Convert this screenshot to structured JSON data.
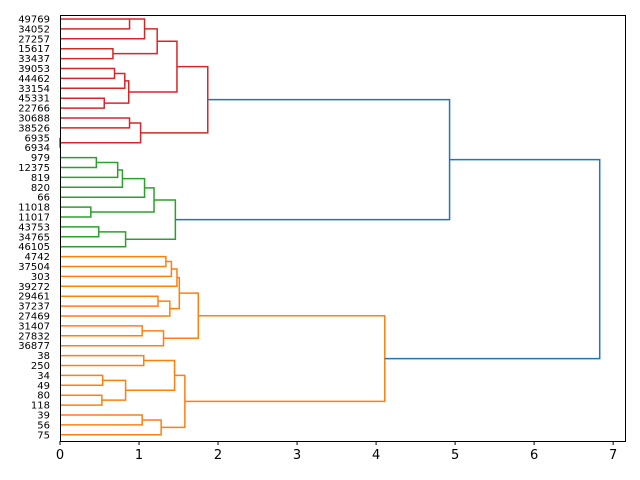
{
  "chart_data": {
    "type": "dendrogram",
    "orientation": "right",
    "title": "",
    "xlabel": "",
    "ylabel": "",
    "xlim": [
      0,
      7.15
    ],
    "xticks": [
      0,
      1,
      2,
      3,
      4,
      5,
      6,
      7
    ],
    "grid": false,
    "leaves": [
      "49769",
      "34052",
      "27257",
      "15617",
      "33437",
      "39053",
      "44462",
      "33154",
      "45331",
      "22766",
      "30688",
      "38526",
      "6935",
      "6934",
      "979",
      "12375",
      "819",
      "820",
      "66",
      "11018",
      "11017",
      "43753",
      "34765",
      "46105",
      "4742",
      "37504",
      "303",
      "39272",
      "29461",
      "37237",
      "27469",
      "31407",
      "27832",
      "36877",
      "38",
      "250",
      "34",
      "49",
      "80",
      "118",
      "39",
      "56",
      "75"
    ],
    "colors": {
      "red": "#d62728",
      "green": "#2ca02c",
      "orange": "#ff7f0e",
      "blue": "#1f77b4"
    },
    "links": [
      {
        "a": [
          0,
          0,
          0
        ],
        "b": [
          1,
          0,
          0
        ],
        "h": 0.88,
        "color": "red"
      },
      {
        "a": [
          2,
          0,
          0
        ],
        "b": [
          0,
          0.88,
          1
        ],
        "h": 1.07,
        "color": "red"
      },
      {
        "a": [
          3,
          0,
          0
        ],
        "b": [
          4,
          0,
          0
        ],
        "h": 0.67,
        "color": "red"
      },
      {
        "a": [
          1,
          1.07,
          2
        ],
        "b": [
          3.5,
          0.67,
          3
        ],
        "h": 1.23,
        "color": "red"
      },
      {
        "a": [
          5,
          0,
          0
        ],
        "b": [
          6,
          0,
          0
        ],
        "h": 0.69,
        "color": "red"
      },
      {
        "a": [
          5.5,
          0.69,
          5
        ],
        "b": [
          7,
          0,
          0
        ],
        "h": 0.82,
        "color": "red"
      },
      {
        "a": [
          8,
          0,
          0
        ],
        "b": [
          9,
          0,
          0
        ],
        "h": 0.56,
        "color": "red"
      },
      {
        "a": [
          6.25,
          0.82,
          6
        ],
        "b": [
          8.5,
          0.56,
          8
        ],
        "h": 0.87,
        "color": "red"
      },
      {
        "a": [
          2.25,
          1.23,
          4
        ],
        "b": [
          7.375,
          0.87,
          9
        ],
        "h": 1.48,
        "color": "red"
      },
      {
        "a": [
          10,
          0,
          0
        ],
        "b": [
          11,
          0,
          0
        ],
        "h": 0.88,
        "color": "red"
      },
      {
        "a": [
          12,
          0,
          0
        ],
        "b": [
          13,
          0,
          0
        ],
        "h": 0.0,
        "color": "red"
      },
      {
        "a": [
          10.5,
          0.88,
          11
        ],
        "b": [
          12.5,
          0.0,
          12
        ],
        "h": 1.02,
        "color": "red"
      },
      {
        "a": [
          4.8125,
          1.48,
          10
        ],
        "b": [
          11.5,
          1.02,
          13
        ],
        "h": 1.87,
        "color": "red"
      },
      {
        "a": [
          14,
          0,
          0
        ],
        "b": [
          15,
          0,
          0
        ],
        "h": 0.46,
        "color": "green"
      },
      {
        "a": [
          14.5,
          0.46,
          15
        ],
        "b": [
          16,
          0,
          0
        ],
        "h": 0.73,
        "color": "green"
      },
      {
        "a": [
          15.25,
          0.73,
          16
        ],
        "b": [
          17,
          0,
          0
        ],
        "h": 0.79,
        "color": "green"
      },
      {
        "a": [
          16.125,
          0.79,
          17
        ],
        "b": [
          18,
          0,
          0
        ],
        "h": 1.07,
        "color": "green"
      },
      {
        "a": [
          19,
          0,
          0
        ],
        "b": [
          20,
          0,
          0
        ],
        "h": 0.39,
        "color": "green"
      },
      {
        "a": [
          17.0625,
          1.07,
          18
        ],
        "b": [
          19.5,
          0.39,
          19
        ],
        "h": 1.19,
        "color": "green"
      },
      {
        "a": [
          21,
          0,
          0
        ],
        "b": [
          22,
          0,
          0
        ],
        "h": 0.49,
        "color": "green"
      },
      {
        "a": [
          21.5,
          0.49,
          21
        ],
        "b": [
          23,
          0,
          0
        ],
        "h": 0.83,
        "color": "green"
      },
      {
        "a": [
          18.28,
          1.19,
          20
        ],
        "b": [
          22.25,
          0.83,
          22
        ],
        "h": 1.46,
        "color": "green"
      },
      {
        "a": [
          8.15,
          1.87,
          14
        ],
        "b": [
          20.27,
          1.46,
          23
        ],
        "h": 4.93,
        "color": "blue"
      },
      {
        "a": [
          24,
          0,
          0
        ],
        "b": [
          25,
          0,
          0
        ],
        "h": 1.34,
        "color": "orange"
      },
      {
        "a": [
          24.5,
          1.34,
          24
        ],
        "b": [
          26,
          0,
          0
        ],
        "h": 1.41,
        "color": "orange"
      },
      {
        "a": [
          25.25,
          1.41,
          25
        ],
        "b": [
          27,
          0,
          0
        ],
        "h": 1.48,
        "color": "orange"
      },
      {
        "a": [
          28,
          0,
          0
        ],
        "b": [
          29,
          0,
          0
        ],
        "h": 1.24,
        "color": "orange"
      },
      {
        "a": [
          28.5,
          1.24,
          28
        ],
        "b": [
          30,
          0,
          0
        ],
        "h": 1.39,
        "color": "orange"
      },
      {
        "a": [
          26.125,
          1.48,
          26
        ],
        "b": [
          29.25,
          1.39,
          29
        ],
        "h": 1.51,
        "color": "orange"
      },
      {
        "a": [
          31,
          0,
          0
        ],
        "b": [
          32,
          0,
          0
        ],
        "h": 1.04,
        "color": "orange"
      },
      {
        "a": [
          31.5,
          1.04,
          31
        ],
        "b": [
          33,
          0,
          0
        ],
        "h": 1.31,
        "color": "orange"
      },
      {
        "a": [
          27.69,
          1.51,
          30
        ],
        "b": [
          32.25,
          1.31,
          32
        ],
        "h": 1.75,
        "color": "orange"
      },
      {
        "a": [
          34,
          0,
          0
        ],
        "b": [
          35,
          0,
          0
        ],
        "h": 1.06,
        "color": "orange"
      },
      {
        "a": [
          36,
          0,
          0
        ],
        "b": [
          37,
          0,
          0
        ],
        "h": 0.54,
        "color": "orange"
      },
      {
        "a": [
          38,
          0,
          0
        ],
        "b": [
          39,
          0,
          0
        ],
        "h": 0.53,
        "color": "orange"
      },
      {
        "a": [
          36.5,
          0.54,
          34
        ],
        "b": [
          38.5,
          0.53,
          35
        ],
        "h": 0.83,
        "color": "orange"
      },
      {
        "a": [
          34.5,
          1.06,
          33
        ],
        "b": [
          37.5,
          0.83,
          36
        ],
        "h": 1.45,
        "color": "orange"
      },
      {
        "a": [
          40,
          0,
          0
        ],
        "b": [
          41,
          0,
          0
        ],
        "h": 1.04,
        "color": "orange"
      },
      {
        "a": [
          40.5,
          1.04,
          38
        ],
        "b": [
          42,
          0,
          0
        ],
        "h": 1.28,
        "color": "orange"
      },
      {
        "a": [
          36,
          1.45,
          37
        ],
        "b": [
          41.25,
          1.28,
          39
        ],
        "h": 1.58,
        "color": "orange"
      },
      {
        "a": [
          29.97,
          1.75,
          31
        ],
        "b": [
          38.63,
          1.58,
          40
        ],
        "h": 4.11,
        "color": "orange"
      },
      {
        "a": [
          14.21,
          4.93,
          22
        ],
        "b": [
          34.3,
          4.11,
          41
        ],
        "h": 6.83,
        "color": "blue"
      }
    ]
  }
}
